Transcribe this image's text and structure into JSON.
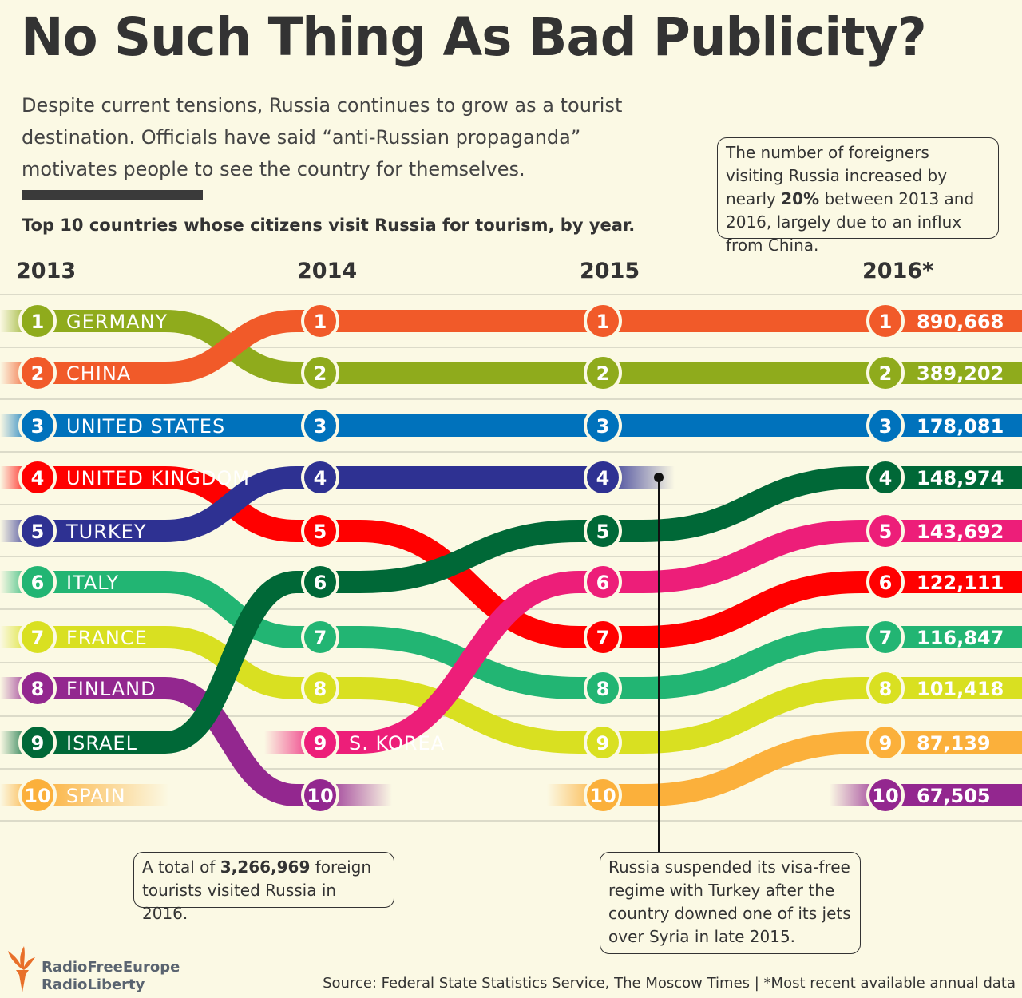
{
  "title": "No Such Thing As Bad Publicity?",
  "subtitle": "Despite current tensions, Russia continues to grow as a tourist destination. Officials have said “anti-Russian propaganda” motivates people to see the country for themselves.",
  "subheading": "Top 10 countries whose citizens visit Russia for tourism, by year.",
  "callout": {
    "before": "The number of foreigners visiting Russia increased by nearly ",
    "bold": "20%",
    "after": " between 2013 and 2016, largely due to an influx from China."
  },
  "total_note": {
    "before": "A total of ",
    "bold": "3,266,969",
    "after": " foreign tourists visited Russia in 2016."
  },
  "visa_note": "Russia suspended its visa-free regime with Turkey after the country downed one of its jets over Syria in late 2015.",
  "source": "Source: Federal State Statistics Service, The Moscow Times | *Most recent available annual data",
  "logo": {
    "line1": "RadioFreeEurope",
    "line2": "RadioLiberty"
  },
  "chart_data": {
    "type": "bump",
    "title": "Top 10 countries whose citizens visit Russia for tourism, by year.",
    "years": [
      "2013",
      "2014",
      "2015",
      "2016*"
    ],
    "rank_range": [
      1,
      10
    ],
    "series": [
      {
        "name": "GERMANY",
        "color": "#8fab1c",
        "ranks": [
          1,
          2,
          2,
          2
        ],
        "value_2016": "389,202"
      },
      {
        "name": "CHINA",
        "color": "#f15a29",
        "ranks": [
          2,
          1,
          1,
          1
        ],
        "value_2016": "890,668"
      },
      {
        "name": "UNITED STATES",
        "color": "#0072bc",
        "ranks": [
          3,
          3,
          3,
          3
        ],
        "value_2016": "178,081"
      },
      {
        "name": "UNITED KINGDOM",
        "color": "#ff0000",
        "ranks": [
          4,
          5,
          7,
          6
        ],
        "value_2016": "122,111"
      },
      {
        "name": "TURKEY",
        "color": "#2e3192",
        "ranks": [
          5,
          4,
          4,
          null
        ],
        "value_2016": null
      },
      {
        "name": "ITALY",
        "color": "#22b573",
        "ranks": [
          6,
          7,
          8,
          7
        ],
        "value_2016": "116,847"
      },
      {
        "name": "FRANCE",
        "color": "#d9e021",
        "ranks": [
          7,
          8,
          9,
          8
        ],
        "value_2016": "101,418"
      },
      {
        "name": "FINLAND",
        "color": "#93278f",
        "ranks": [
          8,
          10,
          null,
          10
        ],
        "value_2016": "67,505"
      },
      {
        "name": "ISRAEL",
        "color": "#006837",
        "ranks": [
          9,
          6,
          5,
          4
        ],
        "value_2016": "148,974"
      },
      {
        "name": "SPAIN",
        "color": "#fbb03b",
        "ranks": [
          10,
          null,
          10,
          9
        ],
        "value_2016": "87,139"
      },
      {
        "name": "S. KOREA",
        "color": "#ed1e79",
        "ranks": [
          null,
          9,
          6,
          5
        ],
        "value_2016": "143,692"
      }
    ]
  }
}
